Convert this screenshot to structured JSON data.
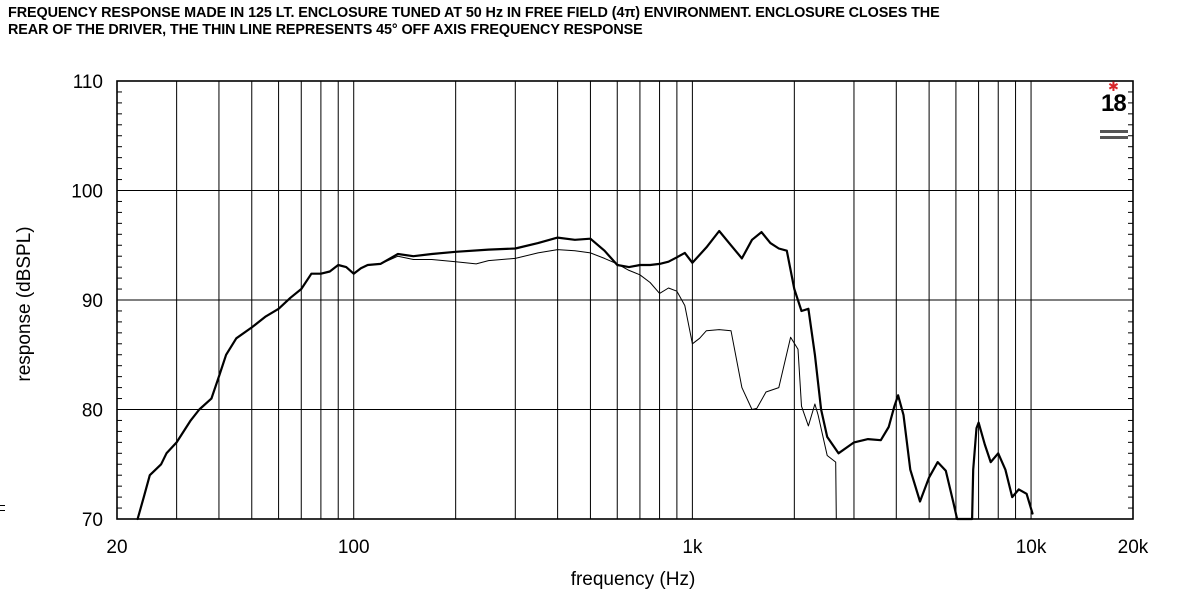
{
  "caption": {
    "line1": "FREQUENCY RESPONSE MADE IN 125 LT. ENCLOSURE TUNED AT 50 Hz IN FREE FIELD (4π) ENVIRONMENT. ENCLOSURE CLOSES THE",
    "line2": "REAR OF THE DRIVER, THE THIN LINE REPRESENTS 45° OFF AXIS FREQUENCY RESPONSE"
  },
  "logo": {
    "text": "18",
    "brand": "18 SOUND",
    "accent_color": "#d7262b"
  },
  "chart_data": {
    "type": "line",
    "xscale": "log",
    "xlim": [
      20,
      20000
    ],
    "ylim": [
      70,
      110
    ],
    "xlabel": "frequency (Hz)",
    "ylabel": "response (dBSPL)",
    "x_ticks": [
      {
        "value": 20,
        "label": "20"
      },
      {
        "value": 100,
        "label": "100"
      },
      {
        "value": 1000,
        "label": "1k"
      },
      {
        "value": 10000,
        "label": "10k"
      },
      {
        "value": 20000,
        "label": "20k"
      }
    ],
    "y_ticks": [
      {
        "value": 70,
        "label": "70"
      },
      {
        "value": 80,
        "label": "80"
      },
      {
        "value": 90,
        "label": "90"
      },
      {
        "value": 100,
        "label": "100"
      },
      {
        "value": 110,
        "label": "110"
      }
    ],
    "grid": true,
    "series": [
      {
        "style": "thick",
        "points": [
          [
            23,
            70
          ],
          [
            24,
            72
          ],
          [
            25,
            74
          ],
          [
            27,
            75
          ],
          [
            28,
            76
          ],
          [
            30,
            77
          ],
          [
            33,
            79
          ],
          [
            35,
            80
          ],
          [
            38,
            81
          ],
          [
            40,
            83
          ],
          [
            42,
            85
          ],
          [
            45,
            86.5
          ],
          [
            50,
            87.5
          ],
          [
            55,
            88.5
          ],
          [
            60,
            89.2
          ],
          [
            65,
            90.2
          ],
          [
            70,
            91
          ],
          [
            75,
            92.4
          ],
          [
            80,
            92.4
          ],
          [
            85,
            92.6
          ],
          [
            90,
            93.2
          ],
          [
            95,
            93
          ],
          [
            100,
            92.4
          ],
          [
            105,
            92.9
          ],
          [
            110,
            93.2
          ],
          [
            120,
            93.3
          ],
          [
            135,
            94.2
          ],
          [
            150,
            94
          ],
          [
            170,
            94.2
          ],
          [
            200,
            94.4
          ],
          [
            250,
            94.6
          ],
          [
            300,
            94.7
          ],
          [
            350,
            95.2
          ],
          [
            400,
            95.7
          ],
          [
            450,
            95.5
          ],
          [
            500,
            95.6
          ],
          [
            550,
            94.5
          ],
          [
            600,
            93.2
          ],
          [
            650,
            93
          ],
          [
            700,
            93.2
          ],
          [
            750,
            93.2
          ],
          [
            800,
            93.3
          ],
          [
            850,
            93.5
          ],
          [
            900,
            93.9
          ],
          [
            950,
            94.3
          ],
          [
            1000,
            93.4
          ],
          [
            1100,
            94.8
          ],
          [
            1200,
            96.3
          ],
          [
            1300,
            95
          ],
          [
            1400,
            93.8
          ],
          [
            1500,
            95.5
          ],
          [
            1600,
            96.2
          ],
          [
            1700,
            95.2
          ],
          [
            1800,
            94.7
          ],
          [
            1900,
            94.5
          ],
          [
            2000,
            91
          ],
          [
            2100,
            89
          ],
          [
            2200,
            89.2
          ],
          [
            2300,
            85
          ],
          [
            2400,
            80
          ],
          [
            2500,
            77.5
          ],
          [
            2700,
            76
          ],
          [
            3000,
            77
          ],
          [
            3300,
            77.3
          ],
          [
            3600,
            77.2
          ],
          [
            3800,
            78.4
          ],
          [
            3950,
            80.3
          ],
          [
            4050,
            81.3
          ],
          [
            4200,
            79.5
          ],
          [
            4400,
            74.5
          ],
          [
            4700,
            71.6
          ],
          [
            5000,
            73.8
          ],
          [
            5300,
            75.2
          ],
          [
            5600,
            74.4
          ],
          [
            5900,
            71.5
          ],
          [
            6050,
            70
          ],
          [
            6700,
            70
          ],
          [
            6750,
            74.5
          ],
          [
            6900,
            78.3
          ],
          [
            7000,
            78.8
          ],
          [
            7300,
            76.8
          ],
          [
            7600,
            75.2
          ],
          [
            8000,
            76
          ],
          [
            8400,
            74.5
          ],
          [
            8800,
            72
          ],
          [
            9200,
            72.7
          ],
          [
            9700,
            72.3
          ],
          [
            10100,
            70.5
          ]
        ]
      },
      {
        "style": "thin",
        "points": [
          [
            23,
            70
          ],
          [
            24,
            72
          ],
          [
            25,
            74
          ],
          [
            27,
            75
          ],
          [
            28,
            76
          ],
          [
            30,
            77
          ],
          [
            33,
            79
          ],
          [
            35,
            80
          ],
          [
            38,
            81
          ],
          [
            40,
            83
          ],
          [
            42,
            85
          ],
          [
            45,
            86.5
          ],
          [
            50,
            87.5
          ],
          [
            55,
            88.5
          ],
          [
            60,
            89.2
          ],
          [
            65,
            90.2
          ],
          [
            70,
            91
          ],
          [
            75,
            92.4
          ],
          [
            80,
            92.4
          ],
          [
            85,
            92.6
          ],
          [
            90,
            93.2
          ],
          [
            95,
            93
          ],
          [
            100,
            92.4
          ],
          [
            105,
            92.9
          ],
          [
            110,
            93.2
          ],
          [
            120,
            93.3
          ],
          [
            135,
            94
          ],
          [
            150,
            93.7
          ],
          [
            170,
            93.7
          ],
          [
            200,
            93.5
          ],
          [
            230,
            93.3
          ],
          [
            250,
            93.6
          ],
          [
            300,
            93.8
          ],
          [
            350,
            94.3
          ],
          [
            400,
            94.6
          ],
          [
            450,
            94.5
          ],
          [
            500,
            94.3
          ],
          [
            550,
            93.8
          ],
          [
            600,
            93.3
          ],
          [
            650,
            92.7
          ],
          [
            700,
            92.3
          ],
          [
            750,
            91.6
          ],
          [
            800,
            90.6
          ],
          [
            850,
            91.1
          ],
          [
            900,
            90.8
          ],
          [
            950,
            89.5
          ],
          [
            1000,
            86
          ],
          [
            1050,
            86.5
          ],
          [
            1100,
            87.2
          ],
          [
            1200,
            87.3
          ],
          [
            1300,
            87.2
          ],
          [
            1400,
            82
          ],
          [
            1500,
            80
          ],
          [
            1550,
            80.1
          ],
          [
            1650,
            81.6
          ],
          [
            1800,
            82
          ],
          [
            1950,
            86.6
          ],
          [
            2050,
            85.5
          ],
          [
            2100,
            80.3
          ],
          [
            2200,
            78.5
          ],
          [
            2300,
            80.5
          ],
          [
            2350,
            79.5
          ],
          [
            2500,
            75.8
          ],
          [
            2650,
            75.2
          ],
          [
            2660,
            70
          ]
        ]
      }
    ]
  }
}
